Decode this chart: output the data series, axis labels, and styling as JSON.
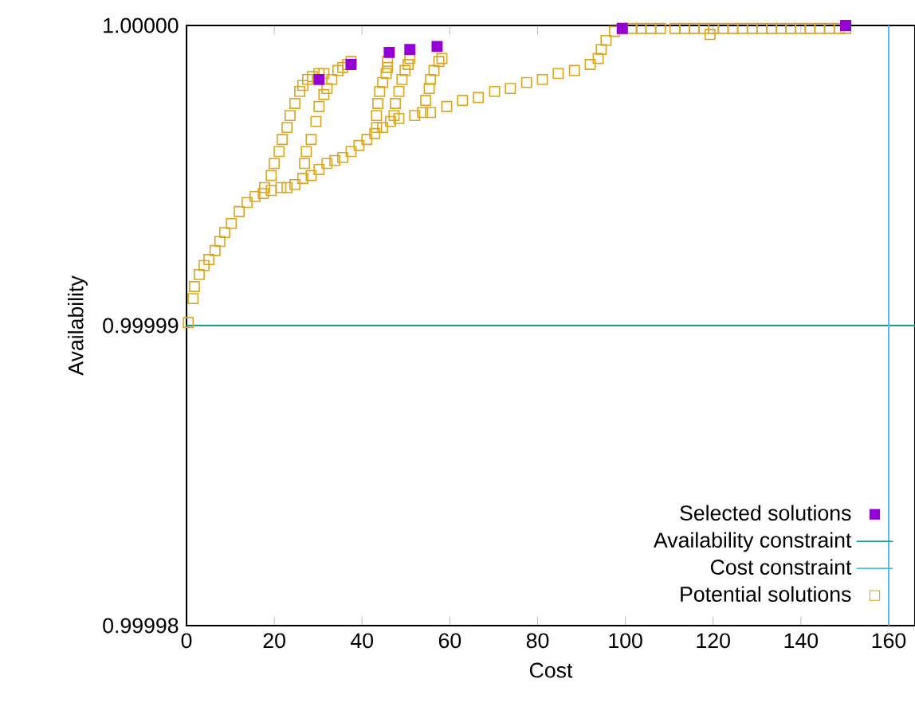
{
  "chart_data": {
    "type": "scatter",
    "xlabel": "Cost",
    "ylabel": "Availability",
    "xlim": [
      0,
      166
    ],
    "ylim": [
      0.99998,
      1.0
    ],
    "xticks": [
      0,
      20,
      40,
      60,
      80,
      100,
      120,
      140,
      160
    ],
    "yticks": [
      {
        "value": 0.99998,
        "label": "0.99998"
      },
      {
        "value": 0.99999,
        "label": "0.99999"
      },
      {
        "value": 1.0,
        "label": "1.00000"
      }
    ],
    "legend": "bottom right",
    "grid": false,
    "series": [
      {
        "name": "Selected solutions",
        "color": "#9400d3",
        "marker": "square*",
        "x": [
          30.2,
          37.5,
          46.2,
          50.9,
          57.1,
          99.3,
          150.2
        ],
        "values": [
          0.9999982,
          0.9999987,
          0.9999991,
          0.9999992,
          0.9999993,
          0.9999999,
          1.0
        ]
      },
      {
        "name": "Potential solutions",
        "color": "#daa520",
        "marker": "square",
        "x": [
          0.4,
          1.5,
          1.8,
          2.9,
          4.0,
          5.1,
          6.5,
          7.6,
          8.7,
          10.2,
          12.0,
          13.8,
          15.6,
          17.5,
          19.3,
          21.5,
          22.9,
          24.7,
          26.5,
          28.4,
          30.2,
          32.0,
          33.8,
          35.6,
          37.5,
          39.3,
          41.1,
          42.9,
          44.7,
          46.5,
          48.4,
          52.0,
          55.6,
          59.3,
          62.9,
          66.5,
          70.2,
          73.8,
          77.5,
          81.1,
          84.7,
          88.4,
          92.0,
          93.8,
          94.5,
          95.6,
          97.5,
          99.3,
          101.5,
          103.6,
          105.8,
          108.0,
          111.3,
          113.5,
          115.7,
          117.9,
          119.3,
          120.1,
          122.3,
          124.5,
          126.7,
          128.9,
          131.1,
          133.3,
          135.5,
          137.7,
          139.9,
          142.1,
          144.3,
          146.5,
          148.7,
          150.2,
          17.8,
          19.3,
          20.0,
          21.1,
          21.8,
          22.9,
          23.6,
          24.7,
          25.8,
          26.5,
          27.6,
          28.7,
          30.2,
          31.3,
          26.9,
          27.3,
          28.4,
          29.5,
          30.2,
          31.3,
          32.0,
          33.1,
          34.5,
          35.6,
          36.7,
          37.5,
          43.3,
          43.3,
          43.6,
          44.0,
          44.7,
          45.5,
          45.8,
          45.8,
          47.3,
          47.6,
          48.4,
          49.1,
          49.8,
          50.5,
          50.9,
          53.8,
          54.5,
          55.3,
          55.6,
          56.4,
          57.5,
          58.2
        ],
        "values": [
          0.9999901,
          0.9999909,
          0.9999913,
          0.9999917,
          0.999992,
          0.9999922,
          0.9999925,
          0.9999928,
          0.9999931,
          0.9999934,
          0.9999938,
          0.9999941,
          0.9999943,
          0.9999944,
          0.9999945,
          0.9999946,
          0.9999946,
          0.9999947,
          0.9999949,
          0.999995,
          0.9999952,
          0.9999954,
          0.9999955,
          0.9999956,
          0.9999958,
          0.999996,
          0.9999962,
          0.9999964,
          0.9999966,
          0.9999968,
          0.9999969,
          0.999997,
          0.9999971,
          0.9999973,
          0.9999975,
          0.9999976,
          0.9999978,
          0.9999979,
          0.9999981,
          0.9999982,
          0.9999984,
          0.9999985,
          0.9999987,
          0.9999989,
          0.9999992,
          0.9999995,
          0.9999998,
          0.9999999,
          0.9999999,
          0.9999999,
          0.9999999,
          0.9999999,
          0.9999999,
          0.9999999,
          0.9999999,
          0.9999999,
          0.9999997,
          0.9999999,
          0.9999999,
          0.9999999,
          0.9999999,
          0.9999999,
          0.9999999,
          0.9999999,
          0.9999999,
          0.9999999,
          0.9999999,
          0.9999999,
          0.9999999,
          0.9999999,
          0.9999999,
          0.9999999,
          0.9999946,
          0.999995,
          0.9999954,
          0.9999958,
          0.9999962,
          0.9999966,
          0.999997,
          0.9999974,
          0.9999978,
          0.999998,
          0.9999982,
          0.9999983,
          0.9999984,
          0.9999984,
          0.9999954,
          0.9999958,
          0.9999962,
          0.9999968,
          0.9999973,
          0.9999977,
          0.9999979,
          0.9999982,
          0.9999985,
          0.9999986,
          0.9999987,
          0.9999988,
          0.9999966,
          0.999997,
          0.9999974,
          0.9999978,
          0.9999981,
          0.9999984,
          0.9999986,
          0.9999988,
          0.999997,
          0.9999974,
          0.9999978,
          0.9999982,
          0.9999985,
          0.9999987,
          0.9999989,
          0.9999971,
          0.9999975,
          0.9999979,
          0.9999982,
          0.9999985,
          0.9999988,
          0.9999989
        ]
      }
    ],
    "ref_lines": [
      {
        "axis": "y",
        "value": 0.99999,
        "label": "Availability constraint",
        "color": "#1a9e88"
      },
      {
        "axis": "x",
        "value": 160,
        "label": "Cost constraint",
        "color": "#56b4e9"
      }
    ]
  }
}
